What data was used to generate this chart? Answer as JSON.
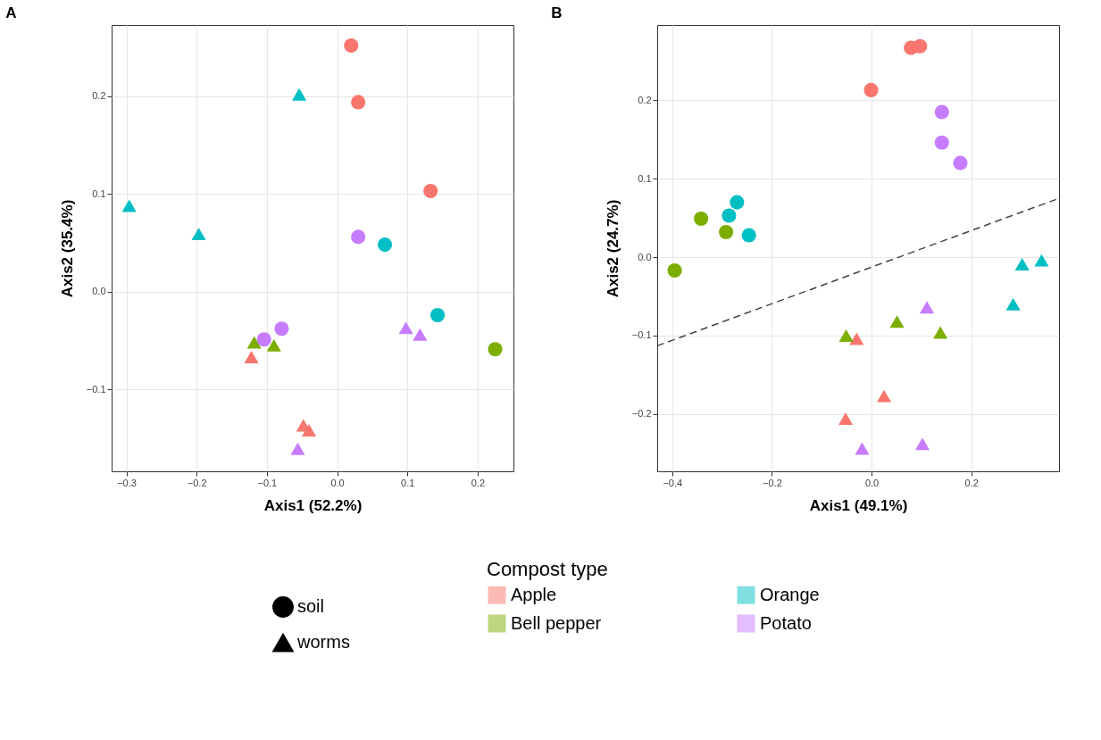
{
  "chart_data": [
    {
      "type": "scatter",
      "title": "A",
      "xlabel": "Axis1 (52.2%)",
      "ylabel": "Axis2 (35.4%)",
      "legend_title": "Compost type",
      "annotations": [
        "soil",
        "worms"
      ],
      "legend": "bottom",
      "grid": true,
      "xlim": [
        -0.321,
        0.251
      ],
      "xticks": [
        -0.3,
        -0.2,
        -0.1,
        {
          "value": 0,
          "label": "0.0"
        },
        0.1,
        0.2
      ],
      "ylim": [
        -0.184,
        0.273
      ],
      "yticks": [
        -0.1,
        {
          "value": 0,
          "label": "0.0"
        },
        0.1,
        0.2
      ],
      "series": [
        {
          "name": "Apple",
          "color": "#f8766d",
          "marker": "circle",
          "x": [
            0.02,
            0.03,
            0.133
          ],
          "values": [
            0.252,
            0.194,
            0.103
          ]
        },
        {
          "color": "#f8766d",
          "marker": "triangle",
          "x": [
            -0.122,
            -0.048,
            -0.04
          ],
          "values": [
            -0.067,
            -0.137,
            -0.142
          ]
        },
        {
          "name": "Bell pepper",
          "color": "#7cae00",
          "marker": "circle",
          "x": [
            0.225
          ],
          "values": [
            -0.059
          ]
        },
        {
          "color": "#7cae00",
          "marker": "triangle",
          "x": [
            -0.118,
            -0.09
          ],
          "values": [
            -0.052,
            -0.055
          ]
        },
        {
          "name": "Orange",
          "color": "#00bfc4",
          "marker": "circle",
          "x": [
            0.068,
            0.143
          ],
          "values": [
            0.048,
            -0.024
          ]
        },
        {
          "color": "#00bfc4",
          "marker": "triangle",
          "x": [
            -0.054,
            -0.296,
            -0.197
          ],
          "values": [
            0.202,
            0.088,
            0.059
          ]
        },
        {
          "name": "Potato",
          "color": "#c77cff",
          "marker": "circle",
          "x": [
            0.03,
            -0.079,
            -0.104
          ],
          "values": [
            0.056,
            -0.038,
            -0.049
          ]
        },
        {
          "color": "#c77cff",
          "marker": "triangle",
          "x": [
            0.098,
            0.118,
            -0.056
          ],
          "values": [
            -0.037,
            -0.044,
            -0.161
          ]
        }
      ]
    },
    {
      "type": "scatter",
      "title": "B",
      "xlabel": "Axis1 (49.1%)",
      "ylabel": "Axis2 (24.7%)",
      "legend": "bottom",
      "grid": true,
      "xlim": [
        -0.43,
        0.376
      ],
      "xticks": [
        -0.4,
        -0.2,
        {
          "value": 0,
          "label": "0.0"
        },
        0.2
      ],
      "ylim": [
        -0.273,
        0.296
      ],
      "yticks": [
        -0.2,
        -0.1,
        {
          "value": 0,
          "label": "0.0"
        },
        0.1,
        0.2
      ],
      "series": [
        {
          "name": "Apple",
          "color": "#f8766d",
          "marker": "circle",
          "x": [
            -0.001,
            0.079,
            0.097
          ],
          "values": [
            0.213,
            0.267,
            0.269
          ]
        },
        {
          "color": "#f8766d",
          "marker": "triangle",
          "x": [
            -0.03,
            0.025,
            -0.052
          ],
          "values": [
            -0.104,
            -0.177,
            -0.206
          ]
        },
        {
          "name": "Bell pepper",
          "color": "#7cae00",
          "marker": "circle",
          "x": [
            -0.395,
            -0.342,
            -0.292
          ],
          "values": [
            -0.017,
            0.049,
            0.032
          ]
        },
        {
          "color": "#7cae00",
          "marker": "triangle",
          "x": [
            -0.051,
            0.051,
            0.138
          ],
          "values": [
            -0.1,
            -0.082,
            -0.096
          ]
        },
        {
          "name": "Orange",
          "color": "#00bfc4",
          "marker": "circle",
          "x": [
            -0.27,
            -0.286,
            -0.246
          ],
          "values": [
            0.07,
            0.053,
            0.028
          ]
        },
        {
          "color": "#00bfc4",
          "marker": "triangle",
          "x": [
            0.302,
            0.341,
            0.284
          ],
          "values": [
            -0.009,
            -0.004,
            -0.06
          ]
        },
        {
          "name": "Potato",
          "color": "#c77cff",
          "marker": "circle",
          "x": [
            0.141,
            0.141,
            0.178
          ],
          "values": [
            0.185,
            0.146,
            0.12
          ]
        },
        {
          "color": "#c77cff",
          "marker": "triangle",
          "x": [
            0.111,
            -0.019,
            0.102
          ],
          "values": [
            -0.064,
            -0.244,
            -0.238
          ]
        },
        {
          "type": "line",
          "color": "#444444",
          "line_style": "dashed",
          "x": [
            -0.43,
            0.376
          ],
          "values": [
            -0.113,
            0.075
          ]
        }
      ]
    }
  ]
}
